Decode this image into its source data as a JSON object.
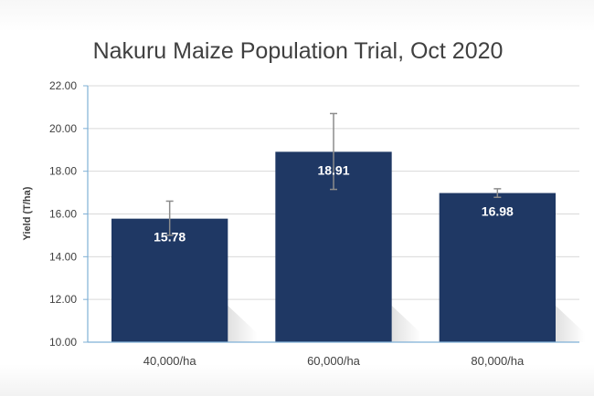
{
  "chart_data": {
    "type": "bar",
    "title": "Nakuru Maize Population Trial, Oct 2020",
    "xlabel": "",
    "ylabel": "Yield (T/ha)",
    "ylim": [
      10,
      22
    ],
    "y_ticks": [
      "10.00",
      "12.00",
      "14.00",
      "16.00",
      "18.00",
      "20.00",
      "22.00"
    ],
    "categories": [
      "40,000/ha",
      "60,000/ha",
      "80,000/ha"
    ],
    "values": [
      15.78,
      18.91,
      16.98
    ],
    "value_labels": [
      "15.78",
      "18.91",
      "16.98"
    ],
    "error_bars": [
      {
        "low": 15.0,
        "high": 16.6
      },
      {
        "low": 17.15,
        "high": 20.7
      },
      {
        "low": 16.78,
        "high": 17.18
      }
    ],
    "grid": true,
    "legend": "none",
    "colors": {
      "bar": "#1f3864",
      "error_bar": "#8c8c8c",
      "grid": "#d9d9d9",
      "axis": "#7fb0d6",
      "title_text": "#404040",
      "label_text": "#404040",
      "value_text": "#ffffff"
    }
  }
}
